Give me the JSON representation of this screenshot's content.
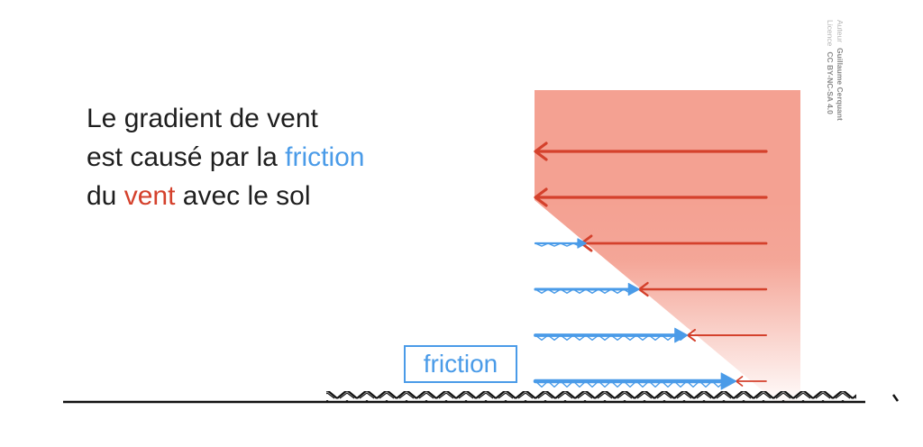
{
  "caption": {
    "line1": "Le gradient de vent",
    "line2_prefix": "est causé par la ",
    "line2_highlight": "friction",
    "line3_prefix": "du ",
    "line3_highlight": "vent",
    "line3_suffix": " avec le sol"
  },
  "friction_label": "friction",
  "credit": {
    "author_key": "Auteur",
    "author_value": "Guillaume Cerquant",
    "license_key": "Licence",
    "license_value": "CC BY-NC-SA 4.0"
  },
  "colors": {
    "wind": "#d4412c",
    "friction": "#4a9be8",
    "zone": "#f4a192",
    "text": "#1e1e1e",
    "ground": "#111111"
  },
  "wind_rows": [
    {
      "wind_strength": 1.0,
      "friction_strength": 0.0
    },
    {
      "wind_strength": 1.0,
      "friction_strength": 0.0
    },
    {
      "wind_strength": 0.8,
      "friction_strength": 0.22
    },
    {
      "wind_strength": 0.55,
      "friction_strength": 0.45
    },
    {
      "wind_strength": 0.34,
      "friction_strength": 0.66
    },
    {
      "wind_strength": 0.13,
      "friction_strength": 0.87
    }
  ]
}
